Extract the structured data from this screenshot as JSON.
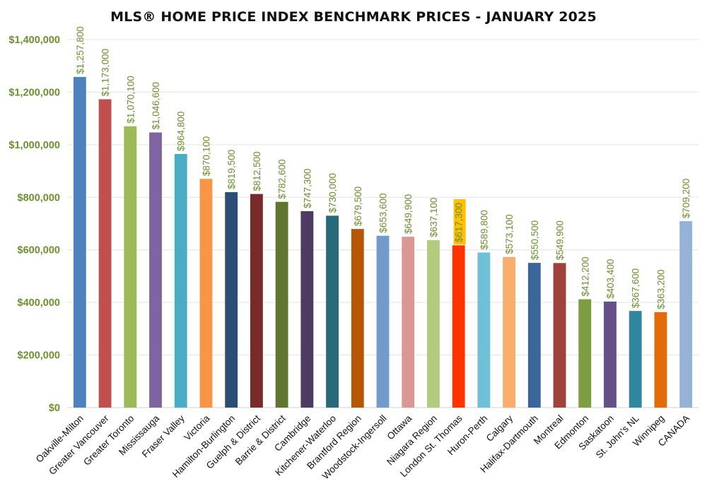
{
  "chart_data": {
    "type": "bar",
    "title": "MLS® HOME PRICE INDEX BENCHMARK PRICES - JANUARY 2025",
    "xlabel": "",
    "ylabel": "",
    "ylim": [
      0,
      1400000
    ],
    "y_ticks": [
      "$0",
      "$200,000",
      "$400,000",
      "$600,000",
      "$800,000",
      "$1,000,000",
      "$1,200,000",
      "$1,400,000"
    ],
    "grid": true,
    "legend": "none",
    "highlighted_label": "London St. Thomas",
    "highlight_color": "#ffc000",
    "label_color": "#6d8f2f",
    "categories": [
      "Oakville-Milton",
      "Greater Vancouver",
      "Greater Toronto",
      "Mississauga",
      "Fraser Valley",
      "Victoria",
      "Hamilton-Burlington",
      "Guelph & District",
      "Barrie & District",
      "Cambridge",
      "Kitchener-Waterloo",
      "Brantford Region",
      "Woodstock-Ingersoll",
      "Ottawa",
      "Niagara Region",
      "London St. Thomas",
      "Huron-Perth",
      "Calgary",
      "Halifax-Dartmouth",
      "Montreal",
      "Edmonton",
      "Saskatoon",
      "St. John's NL",
      "Winnipeg",
      "CANADA"
    ],
    "values": [
      1257800,
      1173000,
      1070100,
      1046600,
      964800,
      870100,
      819500,
      812500,
      782600,
      747300,
      730000,
      679500,
      653600,
      649900,
      637100,
      617300,
      589800,
      573100,
      550500,
      549900,
      412200,
      403400,
      367600,
      363200,
      709200
    ],
    "data_labels": [
      "$1,257,800",
      "$1,173,000",
      "$1,070,100",
      "$1,046,600",
      "$964,800",
      "$870,100",
      "$819,500",
      "$812,500",
      "$782,600",
      "$747,300",
      "$730,000",
      "$679,500",
      "$653,600",
      "$649,900",
      "$637,100",
      "$617,300",
      "$589,800",
      "$573,100",
      "$550,500",
      "$549,900",
      "$412,200",
      "$403,400",
      "$367,600",
      "$363,200",
      "$709,200"
    ],
    "colors": [
      "#4f81bd",
      "#c0504d",
      "#9bbb59",
      "#8064a2",
      "#4bacc6",
      "#f79646",
      "#2c4d75",
      "#772c2a",
      "#5f7530",
      "#4d3b62",
      "#276a7c",
      "#b65708",
      "#729aca",
      "#d99795",
      "#b2cb7e",
      "#ff3300",
      "#6ec0d6",
      "#f9ae6d",
      "#3a669c",
      "#a0413e",
      "#7e9c41",
      "#66508a",
      "#31859c",
      "#e36c0a",
      "#95b3d7"
    ]
  }
}
